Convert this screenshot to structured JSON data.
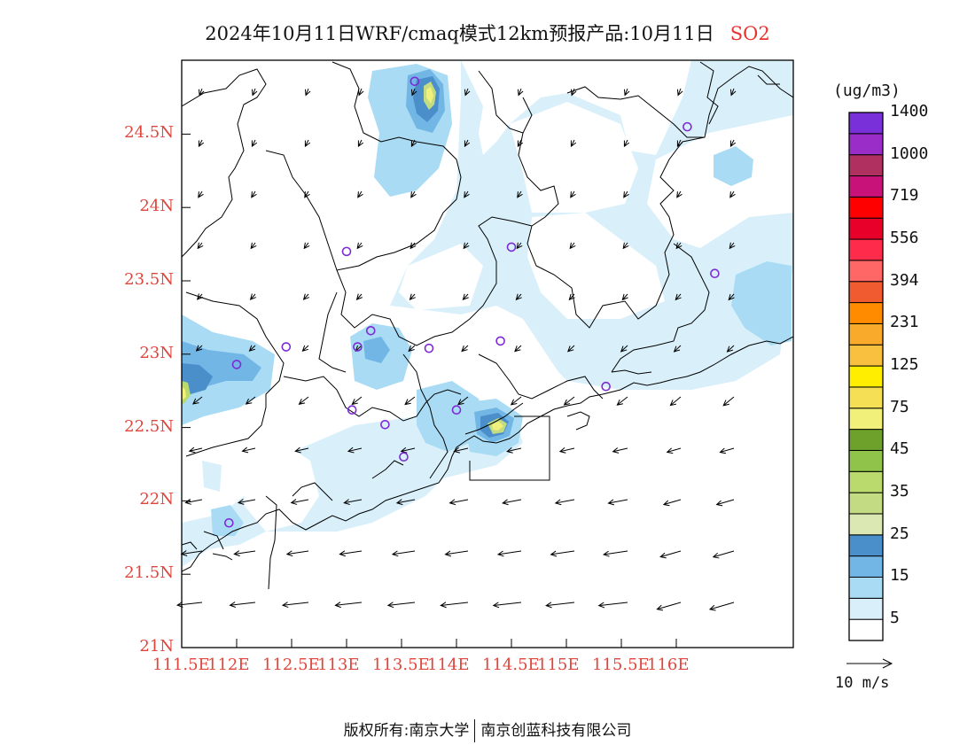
{
  "title": {
    "main": "2024年10月11日WRF/cmaq模式12km预报产品:10月11日",
    "species": "SO2"
  },
  "colorbar": {
    "units": "(ug/m3)",
    "bins": [
      "#ffffff",
      "#d9f0fb",
      "#a9dcf4",
      "#72b6e6",
      "#4a8fc9",
      "#dce8b4",
      "#c3dc84",
      "#bada6e",
      "#8fc34a",
      "#6da12c",
      "#f0f07a",
      "#f5df55",
      "#ffee00",
      "#f9c040",
      "#f9aa2a",
      "#ff8c00",
      "#f05c30",
      "#ff6666",
      "#ff2b4a",
      "#e8002a",
      "#ff0000",
      "#c8127a",
      "#b03060",
      "#9a2cc8",
      "#7a30d8"
    ],
    "labels": [
      "5",
      "15",
      "25",
      "35",
      "45",
      "75",
      "125",
      "231",
      "394",
      "556",
      "719",
      "1000",
      "1400"
    ]
  },
  "axes": {
    "lat_ticks": [
      "21N",
      "21.5N",
      "22N",
      "22.5N",
      "23N",
      "23.5N",
      "24N",
      "24.5N"
    ],
    "lon_ticks": [
      "111.5E",
      "112E",
      "112.5E",
      "113E",
      "113.5E",
      "114E",
      "114.5E",
      "115E",
      "115.5E",
      "116E"
    ]
  },
  "vector_legend": {
    "label": "10 m/s"
  },
  "stations": [
    {
      "lon": 113.62,
      "lat": 24.86
    },
    {
      "lon": 116.1,
      "lat": 24.55
    },
    {
      "lon": 113.0,
      "lat": 23.7
    },
    {
      "lon": 114.5,
      "lat": 23.73
    },
    {
      "lon": 116.35,
      "lat": 23.55
    },
    {
      "lon": 112.45,
      "lat": 23.05
    },
    {
      "lon": 113.22,
      "lat": 23.16
    },
    {
      "lon": 113.1,
      "lat": 23.05
    },
    {
      "lon": 113.75,
      "lat": 23.04
    },
    {
      "lon": 114.4,
      "lat": 23.09
    },
    {
      "lon": 112.0,
      "lat": 22.93
    },
    {
      "lon": 115.36,
      "lat": 22.78
    },
    {
      "lon": 113.05,
      "lat": 22.62
    },
    {
      "lon": 113.35,
      "lat": 22.52
    },
    {
      "lon": 114.0,
      "lat": 22.62
    },
    {
      "lon": 113.52,
      "lat": 22.3
    },
    {
      "lon": 111.93,
      "lat": 21.85
    }
  ],
  "footer": {
    "left": "版权所有:南京大学",
    "right": "南京创蓝科技有限公司"
  }
}
